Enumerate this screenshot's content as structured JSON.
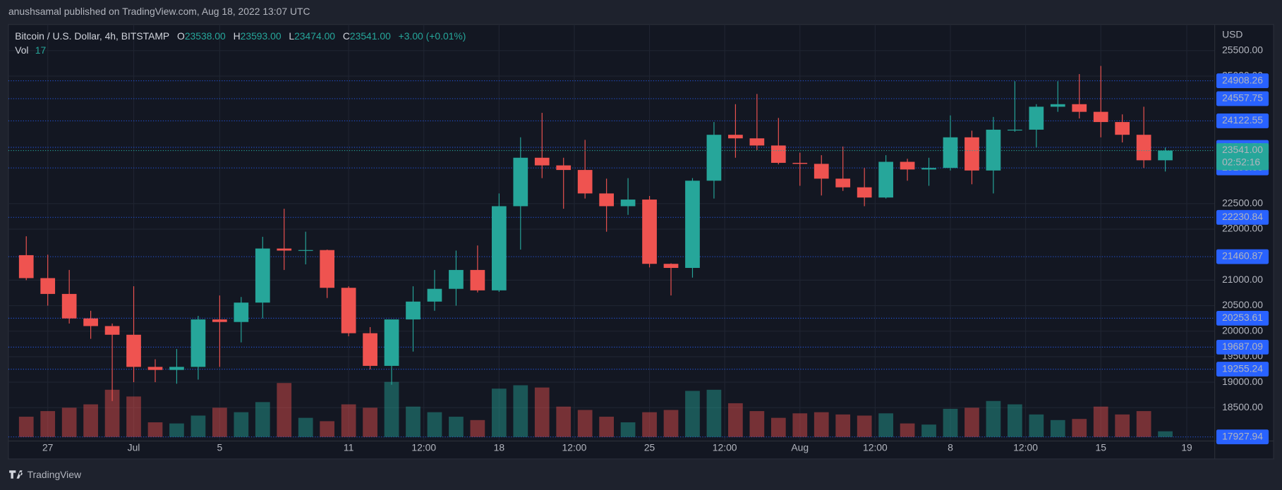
{
  "header": {
    "text": "anushsamal published on TradingView.com, Aug 18, 2022 13:07 UTC"
  },
  "chart_data": {
    "type": "candlestick",
    "title": "Bitcoin / U.S. Dollar, 4h, BITSTAMP",
    "legend": {
      "o_label": "O",
      "open": {
        "value": 23538,
        "label": "23538.00"
      },
      "h_label": "H",
      "high": {
        "value": 23593,
        "label": "23593.00"
      },
      "l_label": "L",
      "low": {
        "value": 23474,
        "label": "23474.00"
      },
      "c_label": "C",
      "close": {
        "value": 23541,
        "label": "23541.00"
      },
      "change": "+3.00 (+0.01%)",
      "vol_label": "Vol",
      "volume": 17
    },
    "currency": "USD",
    "open": [
      21490,
      21040,
      20730,
      20250,
      20100,
      19930,
      19300,
      19240,
      19300,
      20230,
      20180,
      20560,
      21620,
      21580,
      21590,
      20850,
      19960,
      19320,
      20230,
      20580,
      20830,
      21200,
      20800,
      22450,
      23400,
      23250,
      23160,
      22700,
      22450,
      22580,
      21320,
      21240,
      22950,
      23850,
      23780,
      23640,
      23300,
      23280,
      22990,
      22820,
      22620,
      23320,
      23170,
      23200,
      23800,
      23150,
      23950,
      23950,
      24400,
      24450,
      24300,
      24100,
      23850,
      23350
    ],
    "high": [
      21860,
      21500,
      21200,
      20400,
      20150,
      20880,
      19450,
      19650,
      20300,
      20700,
      20670,
      21850,
      22400,
      21950,
      21600,
      20880,
      20080,
      20200,
      20880,
      21200,
      21580,
      21680,
      22700,
      23800,
      24280,
      23400,
      23750,
      22990,
      23000,
      22650,
      21330,
      23000,
      24100,
      24450,
      24650,
      24180,
      23500,
      23450,
      23620,
      23200,
      23450,
      23380,
      23400,
      24230,
      23930,
      24200,
      24900,
      24450,
      24900,
      25040,
      25200,
      24250,
      24400,
      23600
    ],
    "low": [
      21000,
      20500,
      20150,
      19850,
      18630,
      19000,
      19000,
      18970,
      19050,
      19300,
      19780,
      20250,
      21200,
      21310,
      20650,
      19900,
      19250,
      18950,
      19600,
      20400,
      20500,
      20760,
      20770,
      21600,
      23000,
      22400,
      22600,
      21950,
      22280,
      21250,
      20700,
      21050,
      22600,
      23400,
      23550,
      23270,
      22850,
      22660,
      22750,
      22450,
      22600,
      22950,
      22850,
      23150,
      22880,
      22700,
      23910,
      23600,
      24300,
      24170,
      23800,
      23700,
      23200,
      23130
    ],
    "close": [
      21040,
      20730,
      20250,
      20100,
      19930,
      19300,
      19240,
      19300,
      20230,
      20180,
      20560,
      21620,
      21580,
      21590,
      20850,
      19960,
      19320,
      20230,
      20580,
      20830,
      21200,
      20800,
      22450,
      23400,
      23250,
      23160,
      22700,
      22450,
      22580,
      21320,
      21240,
      22950,
      23850,
      23780,
      23640,
      23300,
      23280,
      22990,
      22820,
      22620,
      23320,
      23170,
      23200,
      23800,
      23150,
      23950,
      23950,
      24400,
      24450,
      24300,
      24100,
      23850,
      23350,
      23541
    ],
    "volume": [
      1800,
      2300,
      2600,
      2900,
      4200,
      3600,
      1300,
      1200,
      1900,
      2600,
      2200,
      3100,
      4800,
      1700,
      1400,
      2900,
      2600,
      4900,
      2700,
      2200,
      1800,
      1500,
      4300,
      4600,
      4400,
      2700,
      2400,
      1800,
      1300,
      2200,
      2400,
      4100,
      4200,
      3000,
      2300,
      1700,
      2100,
      2200,
      2000,
      1900,
      2100,
      1200,
      1100,
      2500,
      2600,
      3200,
      2900,
      2000,
      1500,
      1600,
      2700,
      2000,
      2300,
      500
    ],
    "vol_lim": [
      0,
      8000
    ],
    "up_color": "#26a69a",
    "down_color": "#ef5350",
    "xlim": [
      -0.83,
      55.3
    ],
    "xticks": [
      {
        "value": 1,
        "label": "27"
      },
      {
        "value": 5,
        "label": "Jul"
      },
      {
        "value": 9,
        "label": "5"
      },
      {
        "value": 15,
        "label": "11"
      },
      {
        "value": 18.5,
        "label": "12:00"
      },
      {
        "value": 22,
        "label": "18"
      },
      {
        "value": 25.5,
        "label": "12:00"
      },
      {
        "value": 29,
        "label": "25"
      },
      {
        "value": 32.5,
        "label": "12:00"
      },
      {
        "value": 36,
        "label": "Aug"
      },
      {
        "value": 39.5,
        "label": "12:00"
      },
      {
        "value": 43,
        "label": "8"
      },
      {
        "value": 46.5,
        "label": "12:00"
      },
      {
        "value": 50,
        "label": "15"
      },
      {
        "value": 54,
        "label": "19"
      }
    ],
    "ylim": [
      17847,
      26012
    ],
    "yticks": [
      {
        "value": 25500,
        "label": "25500.00"
      },
      {
        "value": 25000,
        "label": "25000.00"
      },
      {
        "value": 22500,
        "label": "22500.00"
      },
      {
        "value": 22000,
        "label": "22000.00"
      },
      {
        "value": 21000,
        "label": "21000.00"
      },
      {
        "value": 20500,
        "label": "20500.00"
      },
      {
        "value": 20000,
        "label": "20000.00"
      },
      {
        "value": 19500,
        "label": "19500.00"
      },
      {
        "value": 19000,
        "label": "19000.00"
      },
      {
        "value": 18500,
        "label": "18500.00"
      }
    ],
    "price_lines": [
      24908.26,
      24557.75,
      24122.55,
      23603.72,
      23199.88,
      22230.84,
      21460.87,
      20253.61,
      19687.09,
      19255.24,
      17927.94
    ],
    "current_price": {
      "value": 23541,
      "label": "23541.00"
    },
    "countdown": "02:52:16",
    "grid": true
  },
  "footer": {
    "brand": "TradingView"
  }
}
